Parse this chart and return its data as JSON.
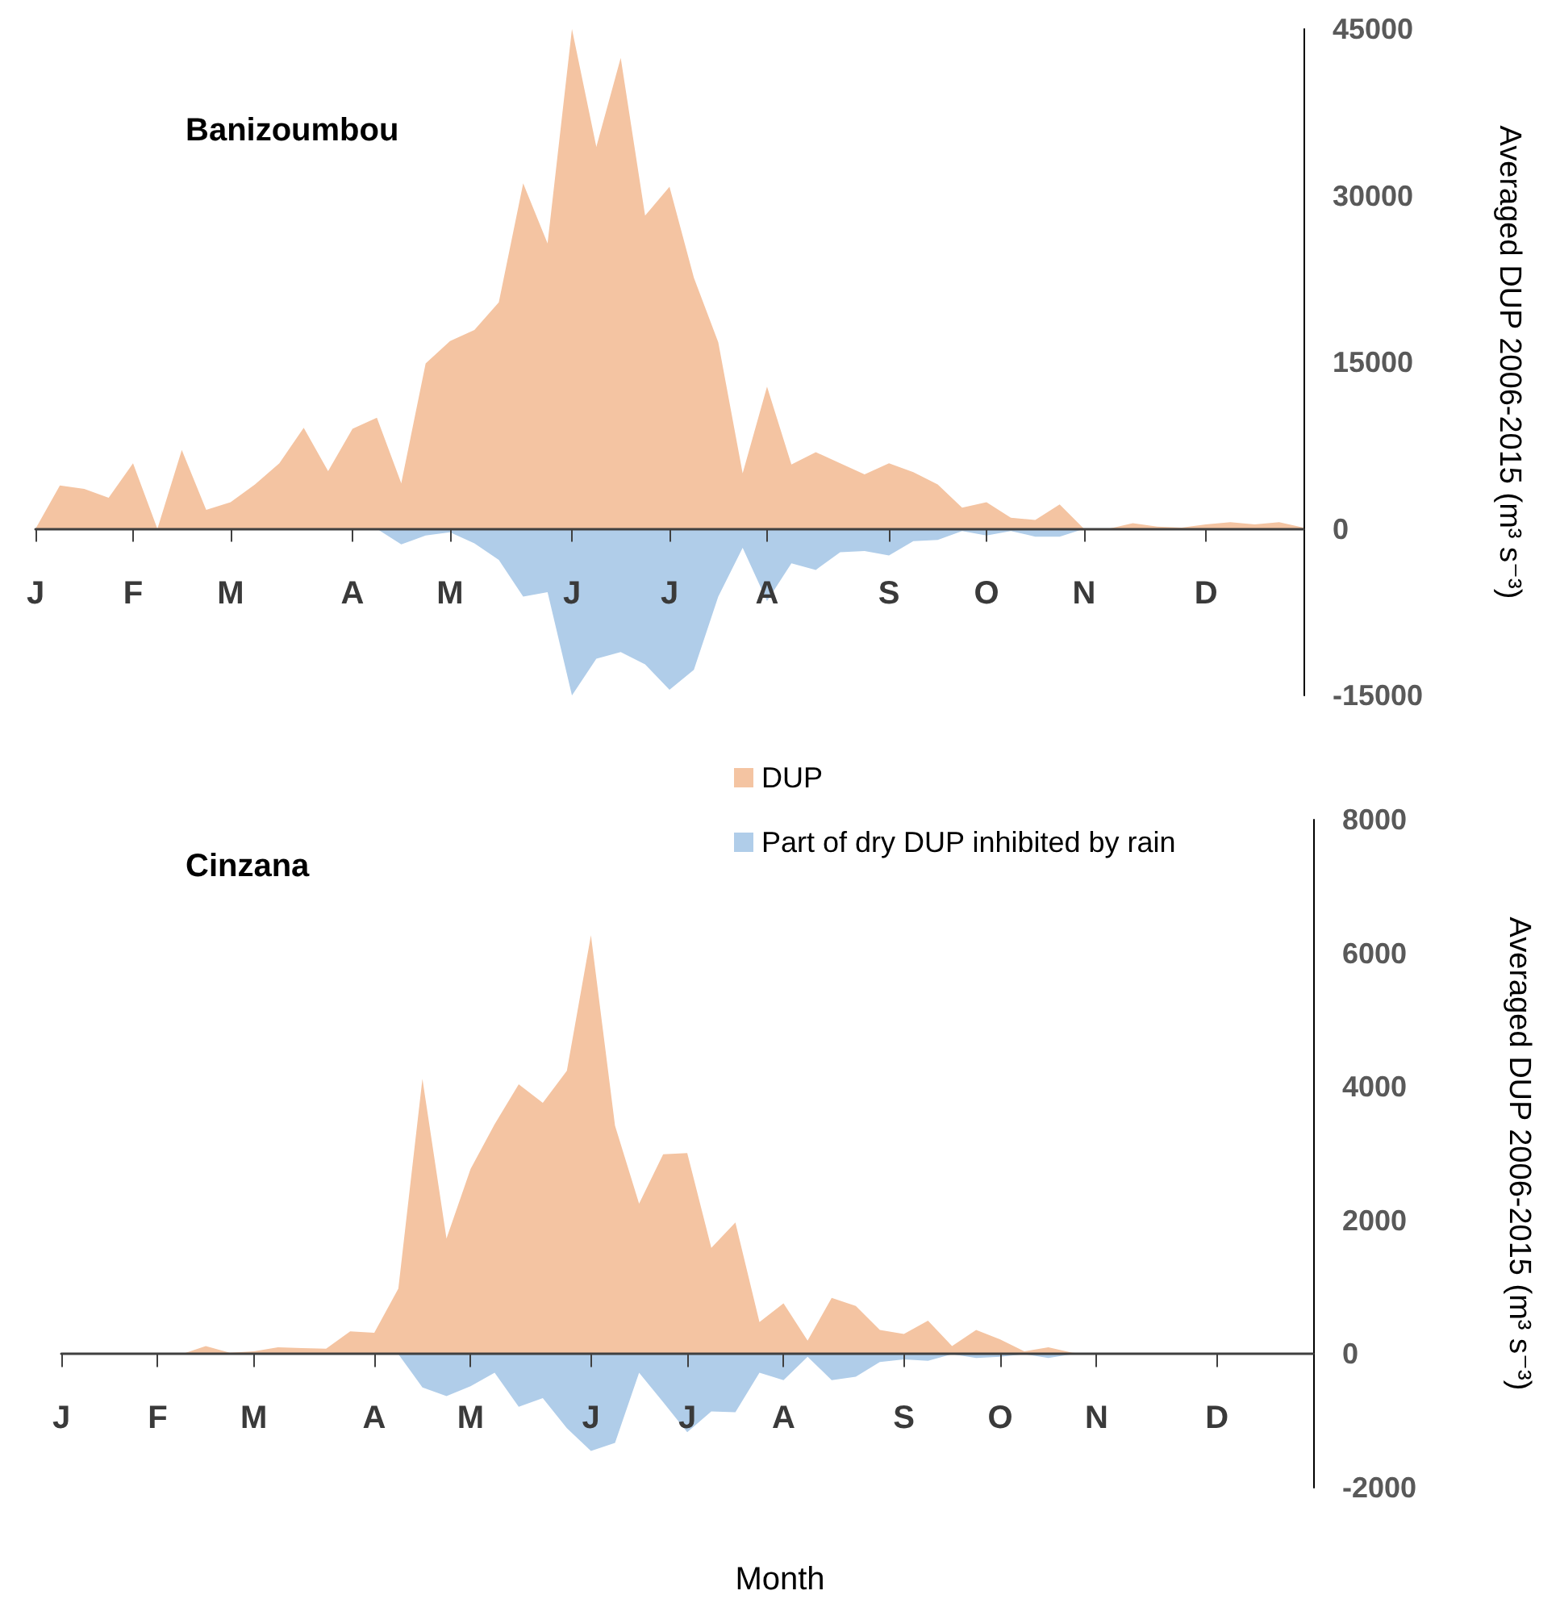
{
  "chart_data": [
    {
      "type": "area",
      "title": "Banizoumbou",
      "ylabel": "Averaged DUP 2006-2015 (m³ s⁻³)",
      "categories": [
        "J",
        null,
        null,
        null,
        "F",
        null,
        null,
        null,
        "M",
        null,
        null,
        null,
        null,
        "A",
        null,
        null,
        null,
        "M",
        null,
        null,
        null,
        null,
        "J",
        null,
        null,
        null,
        "J",
        null,
        null,
        null,
        "A",
        null,
        null,
        null,
        null,
        "S",
        null,
        null,
        null,
        "O",
        null,
        null,
        null,
        "N",
        null,
        null,
        null,
        null,
        "D",
        null,
        null,
        null,
        null
      ],
      "ylim": [
        -15000,
        45000
      ],
      "yticks": [
        -15000,
        0,
        15000,
        30000,
        45000
      ],
      "series": [
        {
          "color": "#f4c4a2",
          "values": [
            0,
            3900,
            3600,
            2800,
            5900,
            0,
            7100,
            1700,
            2400,
            4000,
            5900,
            9100,
            5200,
            9000,
            10000,
            4100,
            14900,
            16900,
            17900,
            20400,
            31100,
            25700,
            45000,
            34400,
            42400,
            28200,
            30800,
            22600,
            16800,
            5000,
            12800,
            5800,
            6900,
            5900,
            4900,
            5900,
            5100,
            4000,
            1900,
            2400,
            1000,
            800,
            2200,
            0,
            0,
            500,
            200,
            100,
            400,
            600,
            400,
            600,
            100
          ]
        },
        {
          "color": "#b0cde9",
          "values": [
            0,
            0,
            0,
            0,
            0,
            0,
            0,
            0,
            0,
            0,
            0,
            0,
            0,
            0,
            0,
            -1400,
            -600,
            -300,
            -1300,
            -2800,
            -6100,
            -5700,
            -15000,
            -11700,
            -11100,
            -12200,
            -14500,
            -12700,
            -6100,
            -1700,
            -6500,
            -3100,
            -3700,
            -2100,
            -2000,
            -2400,
            -1100,
            -1000,
            -200,
            -600,
            -200,
            -700,
            -700,
            0,
            0,
            0,
            0,
            0,
            0,
            0,
            0,
            0,
            0
          ]
        }
      ]
    },
    {
      "type": "area",
      "title": "Cinzana",
      "xlabel": "Month",
      "ylabel": "Averaged DUP 2006-2015 (m³ s⁻³)",
      "legend": "top",
      "categories": [
        "J",
        null,
        null,
        null,
        "F",
        null,
        null,
        null,
        "M",
        null,
        null,
        null,
        null,
        "A",
        null,
        null,
        null,
        "M",
        null,
        null,
        null,
        null,
        "J",
        null,
        null,
        null,
        "J",
        null,
        null,
        null,
        "A",
        null,
        null,
        null,
        null,
        "S",
        null,
        null,
        null,
        "O",
        null,
        null,
        null,
        "N",
        null,
        null,
        null,
        null,
        "D",
        null,
        null,
        null,
        null
      ],
      "ylim": [
        -2000,
        8000
      ],
      "yticks": [
        -2000,
        0,
        2000,
        4000,
        6000,
        8000
      ],
      "series": [
        {
          "name": "DUP",
          "color": "#f4c4a2",
          "values": [
            0,
            0,
            0,
            0,
            0,
            0,
            120,
            20,
            40,
            100,
            90,
            80,
            340,
            320,
            980,
            4120,
            1730,
            2770,
            3440,
            4040,
            3760,
            4240,
            6270,
            3420,
            2250,
            2990,
            3010,
            1590,
            1970,
            480,
            760,
            200,
            840,
            720,
            360,
            300,
            500,
            120,
            360,
            220,
            40,
            100,
            20,
            0,
            0,
            0,
            0,
            0,
            0,
            0,
            0,
            0,
            0
          ]
        },
        {
          "name": "Part of dry DUP inhibited by rain",
          "color": "#b0cde9",
          "values": [
            0,
            0,
            0,
            0,
            0,
            0,
            0,
            0,
            0,
            0,
            0,
            0,
            0,
            0,
            0,
            -500,
            -630,
            -480,
            -280,
            -790,
            -660,
            -1110,
            -1450,
            -1330,
            -280,
            -720,
            -1170,
            -860,
            -870,
            -280,
            -390,
            -40,
            -390,
            -340,
            -120,
            -80,
            -100,
            0,
            -60,
            -40,
            0,
            -60,
            0,
            0,
            0,
            0,
            0,
            0,
            0,
            0,
            0,
            0,
            0
          ]
        }
      ]
    }
  ]
}
